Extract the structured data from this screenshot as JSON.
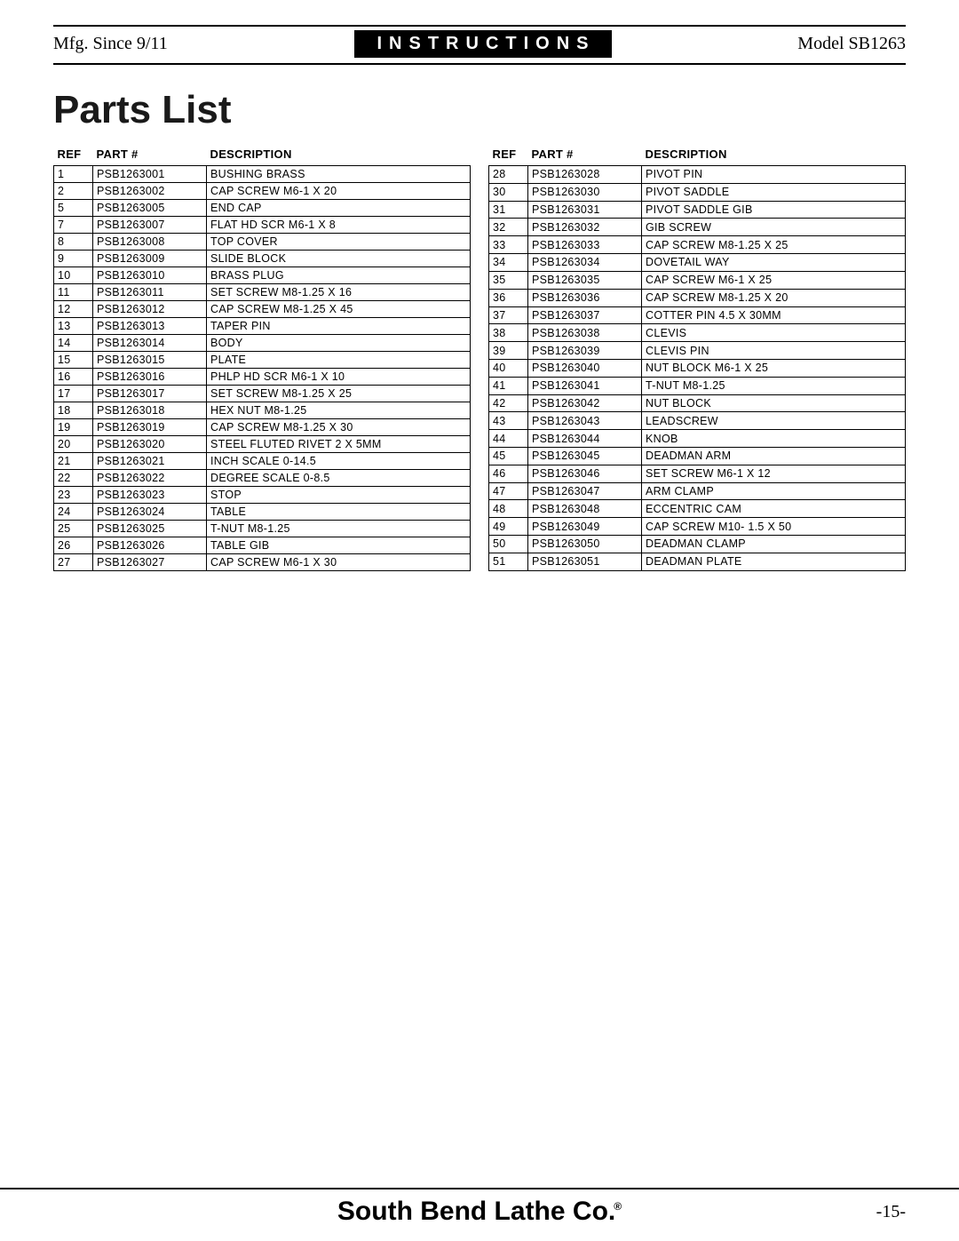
{
  "header": {
    "mfg": "Mfg. Since 9/11",
    "badge": "INSTRUCTIONS",
    "model": "Model SB1263"
  },
  "title": "Parts List",
  "columns": [
    "REF",
    "PART #",
    "DESCRIPTION"
  ],
  "left_rows": [
    [
      "1",
      "PSB1263001",
      "BUSHING BRASS"
    ],
    [
      "2",
      "PSB1263002",
      "CAP SCREW M6-1 X 20"
    ],
    [
      "5",
      "PSB1263005",
      "END CAP"
    ],
    [
      "7",
      "PSB1263007",
      "FLAT HD SCR M6-1 X 8"
    ],
    [
      "8",
      "PSB1263008",
      "TOP COVER"
    ],
    [
      "9",
      "PSB1263009",
      "SLIDE BLOCK"
    ],
    [
      "10",
      "PSB1263010",
      "BRASS PLUG"
    ],
    [
      "11",
      "PSB1263011",
      "SET SCREW M8-1.25 X 16"
    ],
    [
      "12",
      "PSB1263012",
      "CAP SCREW M8-1.25 X 45"
    ],
    [
      "13",
      "PSB1263013",
      "TAPER PIN"
    ],
    [
      "14",
      "PSB1263014",
      "BODY"
    ],
    [
      "15",
      "PSB1263015",
      "PLATE"
    ],
    [
      "16",
      "PSB1263016",
      "PHLP HD SCR M6-1 X 10"
    ],
    [
      "17",
      "PSB1263017",
      "SET SCREW M8-1.25 X 25"
    ],
    [
      "18",
      "PSB1263018",
      "HEX NUT M8-1.25"
    ],
    [
      "19",
      "PSB1263019",
      "CAP SCREW M8-1.25 X 30"
    ],
    [
      "20",
      "PSB1263020",
      "STEEL FLUTED RIVET 2 X 5MM"
    ],
    [
      "21",
      "PSB1263021",
      "INCH SCALE 0-14.5"
    ],
    [
      "22",
      "PSB1263022",
      "DEGREE SCALE 0-8.5"
    ],
    [
      "23",
      "PSB1263023",
      "STOP"
    ],
    [
      "24",
      "PSB1263024",
      "TABLE"
    ],
    [
      "25",
      "PSB1263025",
      "T-NUT M8-1.25"
    ],
    [
      "26",
      "PSB1263026",
      "TABLE GIB"
    ],
    [
      "27",
      "PSB1263027",
      "CAP SCREW M6-1 X 30"
    ]
  ],
  "right_rows": [
    [
      "28",
      "PSB1263028",
      "PIVOT PIN"
    ],
    [
      "30",
      "PSB1263030",
      "PIVOT SADDLE"
    ],
    [
      "31",
      "PSB1263031",
      "PIVOT SADDLE GIB"
    ],
    [
      "32",
      "PSB1263032",
      "GIB SCREW"
    ],
    [
      "33",
      "PSB1263033",
      "CAP SCREW M8-1.25 X 25"
    ],
    [
      "34",
      "PSB1263034",
      "DOVETAIL WAY"
    ],
    [
      "35",
      "PSB1263035",
      "CAP SCREW M6-1 X 25"
    ],
    [
      "36",
      "PSB1263036",
      "CAP SCREW M8-1.25 X 20"
    ],
    [
      "37",
      "PSB1263037",
      "COTTER PIN 4.5 X 30MM"
    ],
    [
      "38",
      "PSB1263038",
      "CLEVIS"
    ],
    [
      "39",
      "PSB1263039",
      "CLEVIS PIN"
    ],
    [
      "40",
      "PSB1263040",
      "NUT BLOCK M6-1 X 25"
    ],
    [
      "41",
      "PSB1263041",
      "T-NUT M8-1.25"
    ],
    [
      "42",
      "PSB1263042",
      "NUT BLOCK"
    ],
    [
      "43",
      "PSB1263043",
      "LEADSCREW"
    ],
    [
      "44",
      "PSB1263044",
      "KNOB"
    ],
    [
      "45",
      "PSB1263045",
      "DEADMAN ARM"
    ],
    [
      "46",
      "PSB1263046",
      "SET SCREW M6-1 X 12"
    ],
    [
      "47",
      "PSB1263047",
      "ARM CLAMP"
    ],
    [
      "48",
      "PSB1263048",
      "ECCENTRIC CAM"
    ],
    [
      "49",
      "PSB1263049",
      "CAP SCREW M10- 1.5 X 50"
    ],
    [
      "50",
      "PSB1263050",
      "DEADMAN CLAMP"
    ],
    [
      "51",
      "PSB1263051",
      "DEADMAN PLATE"
    ]
  ],
  "footer": {
    "brand": "South Bend Lathe Co.",
    "reg": "®",
    "page": "-15-"
  }
}
